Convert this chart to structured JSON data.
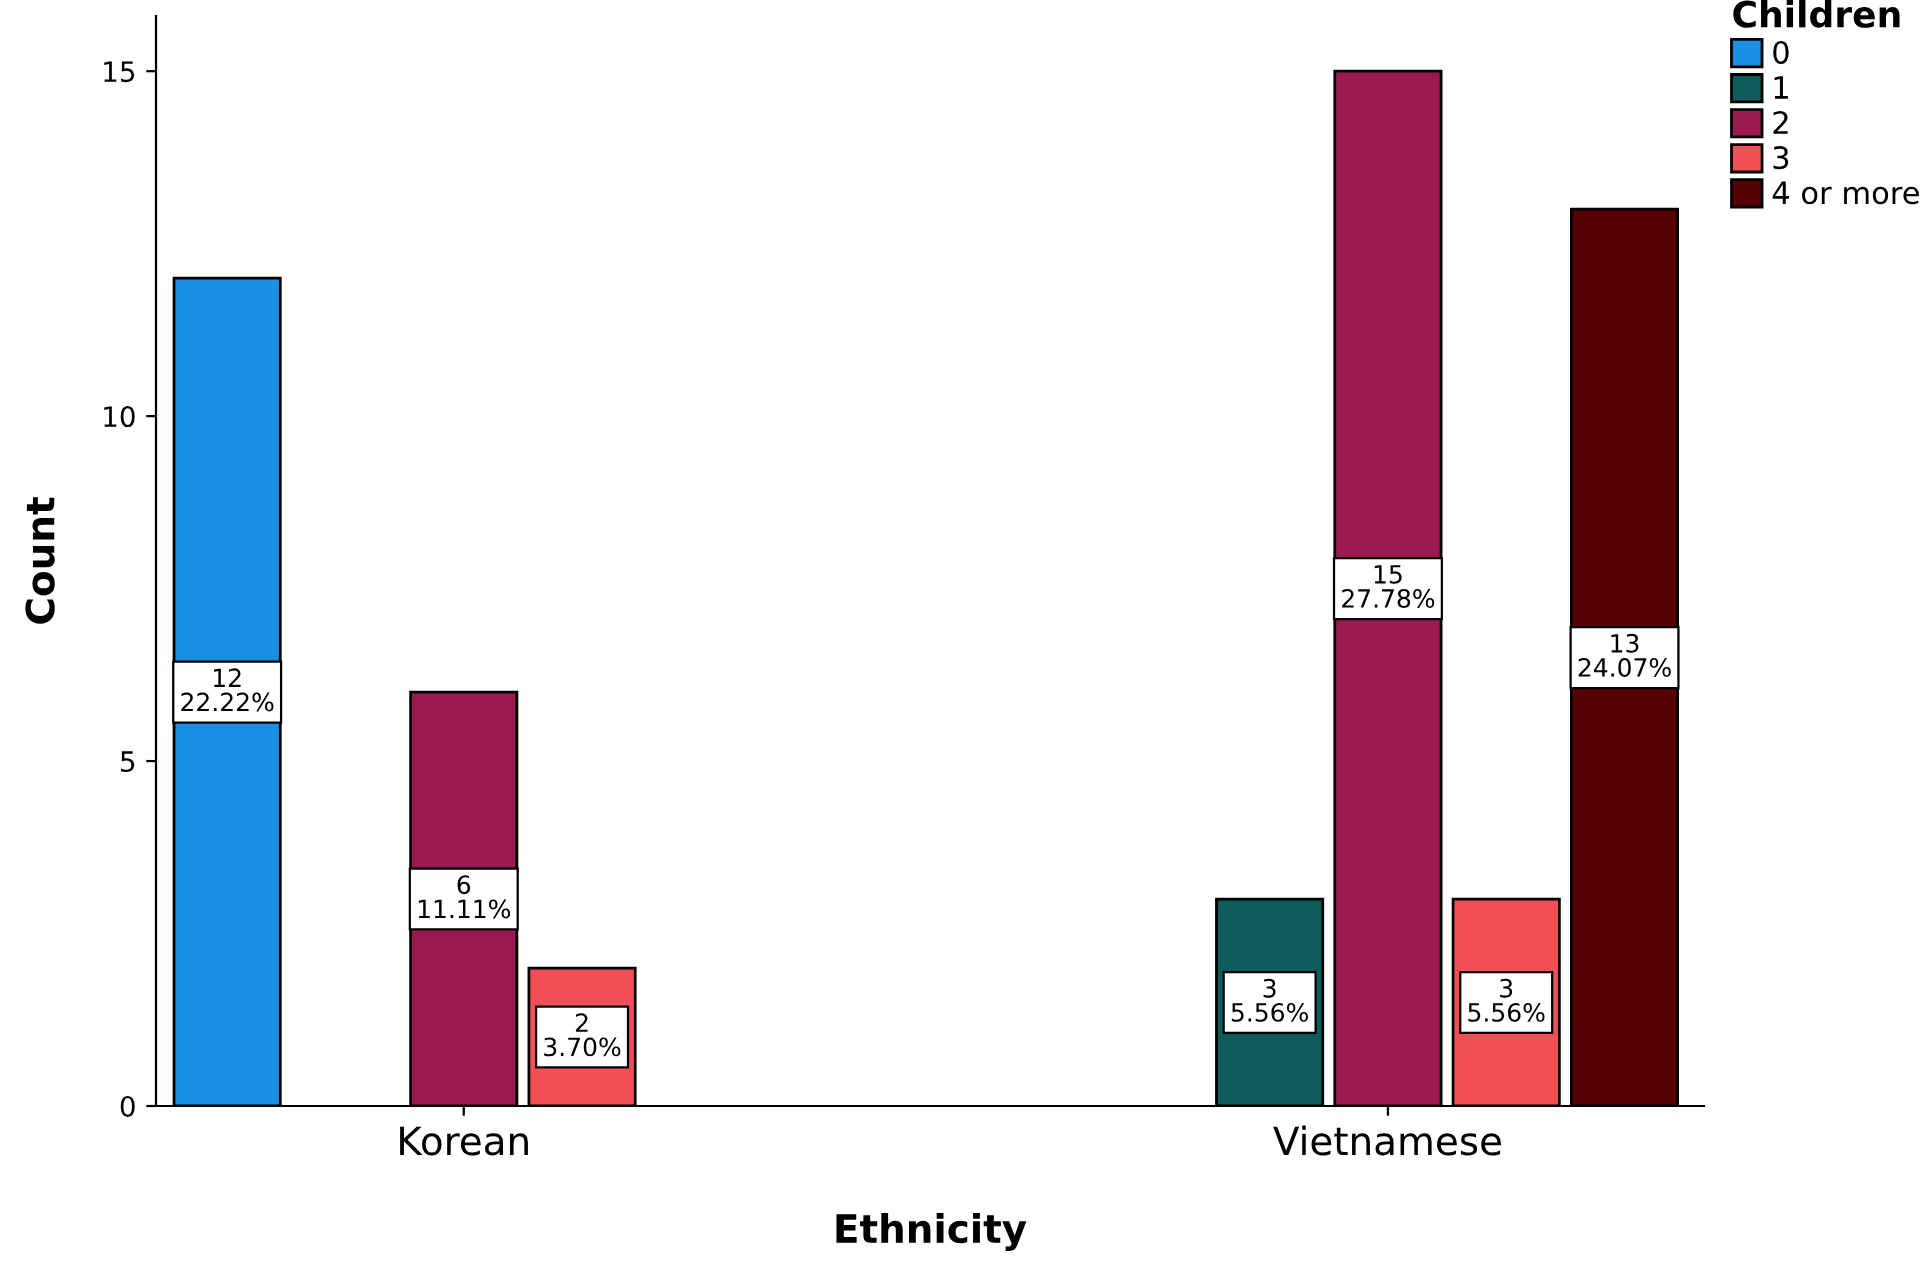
{
  "chart_data": {
    "type": "bar",
    "xlabel": "Ethnicity",
    "ylabel": "Count",
    "legend_title": "Children",
    "legend": "right",
    "grid": false,
    "categories": [
      "Korean",
      "Vietnamese"
    ],
    "ylim": [
      0,
      15.8
    ],
    "yticks": [
      0,
      5,
      10,
      15
    ],
    "series": [
      {
        "name": "0",
        "color": "#1a8fe3",
        "values": [
          12,
          null
        ],
        "value_labels": [
          "12\n22.22%",
          null
        ]
      },
      {
        "name": "1",
        "color": "#0d5c5a",
        "values": [
          null,
          3
        ],
        "value_labels": [
          null,
          "3\n5.56%"
        ]
      },
      {
        "name": "2",
        "color": "#9c1a50",
        "values": [
          6,
          15
        ],
        "value_labels": [
          "6\n11.11%",
          "15\n27.78%"
        ]
      },
      {
        "name": "3",
        "color": "#f24e56",
        "values": [
          2,
          3
        ],
        "value_labels": [
          "2\n3.70%",
          "3\n5.56%"
        ]
      },
      {
        "name": "4 or more",
        "color": "#560006",
        "values": [
          null,
          13
        ],
        "value_labels": [
          null,
          "13\n24.07%"
        ]
      }
    ]
  }
}
